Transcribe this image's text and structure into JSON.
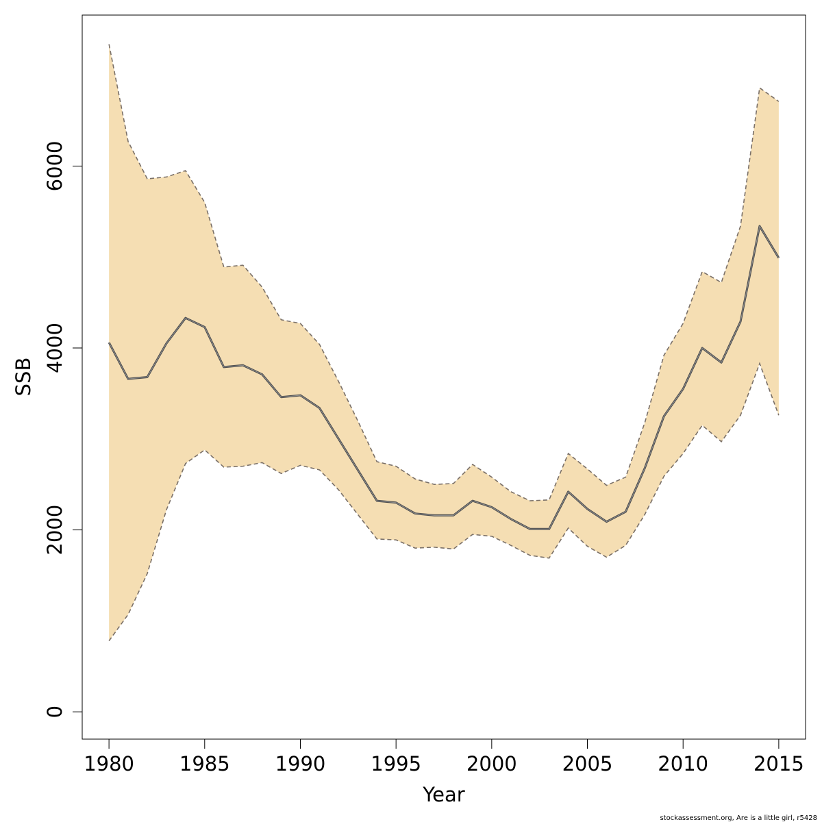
{
  "chart_data": {
    "type": "area",
    "title": "",
    "xlabel": "Year",
    "ylabel": "SSB",
    "xlim": [
      1978.6,
      2016.4
    ],
    "ylim": [
      -300,
      7660
    ],
    "xticks": [
      1980,
      1985,
      1990,
      1995,
      2000,
      2005,
      2010,
      2015
    ],
    "xtick_labels": [
      "1980",
      "1985",
      "1990",
      "1995",
      "2000",
      "2005",
      "2010",
      "2015"
    ],
    "yticks": [
      0,
      2000,
      4000,
      6000
    ],
    "ytick_labels": [
      "0",
      "2000",
      "4000",
      "6000"
    ],
    "grid": false,
    "x": [
      1980,
      1981,
      1982,
      1983,
      1984,
      1985,
      1986,
      1987,
      1988,
      1989,
      1990,
      1991,
      1992,
      1993,
      1994,
      1995,
      1996,
      1997,
      1998,
      1999,
      2000,
      2001,
      2002,
      2003,
      2004,
      2005,
      2006,
      2007,
      2008,
      2009,
      2010,
      2011,
      2012,
      2013,
      2014,
      2015
    ],
    "series": [
      {
        "name": "SSB",
        "role": "estimate",
        "values": [
          4060,
          3660,
          3680,
          4050,
          4330,
          4230,
          3790,
          3810,
          3710,
          3460,
          3480,
          3340,
          3000,
          2660,
          2320,
          2300,
          2180,
          2160,
          2160,
          2320,
          2250,
          2120,
          2010,
          2010,
          2420,
          2230,
          2090,
          2200,
          2680,
          3250,
          3550,
          4000,
          3840,
          4290,
          5340,
          4990
        ]
      },
      {
        "name": "upper",
        "role": "upper-bound",
        "values": [
          7340,
          6270,
          5860,
          5880,
          5950,
          5600,
          4890,
          4910,
          4670,
          4310,
          4270,
          4040,
          3630,
          3200,
          2750,
          2700,
          2560,
          2500,
          2510,
          2720,
          2580,
          2420,
          2320,
          2330,
          2840,
          2670,
          2490,
          2580,
          3180,
          3920,
          4270,
          4840,
          4720,
          5340,
          6860,
          6710
        ]
      },
      {
        "name": "lower",
        "role": "lower-bound",
        "values": [
          780,
          1070,
          1520,
          2220,
          2730,
          2880,
          2690,
          2700,
          2740,
          2620,
          2710,
          2660,
          2440,
          2170,
          1900,
          1890,
          1800,
          1810,
          1790,
          1950,
          1930,
          1830,
          1720,
          1690,
          2020,
          1820,
          1700,
          1830,
          2170,
          2590,
          2840,
          3150,
          2970,
          3260,
          3830,
          3260
        ]
      }
    ],
    "colors": {
      "band": "#f5deb3",
      "line": "#505050",
      "bound_line": "#7a7068",
      "axis": "#000000"
    }
  },
  "footer": {
    "text": "stockassessment.org, Are  is  a  little  girl, r5428"
  }
}
